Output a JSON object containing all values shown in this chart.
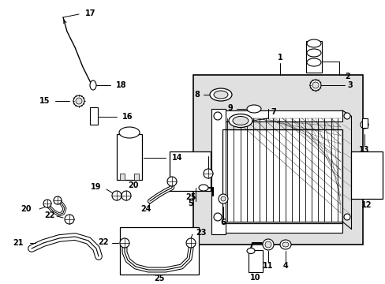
{
  "bg_color": "#ffffff",
  "line_color": "#000000",
  "gray_fill": "#e0e0e0",
  "fig_width": 4.89,
  "fig_height": 3.6,
  "dpi": 100
}
